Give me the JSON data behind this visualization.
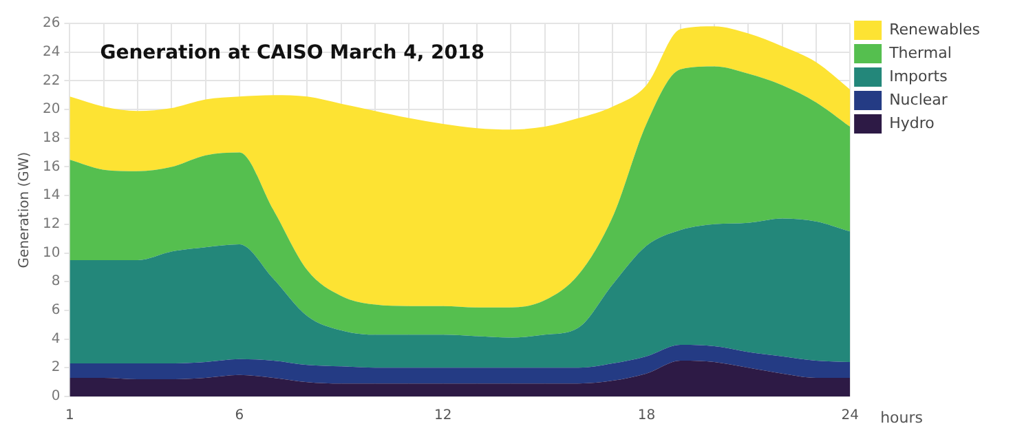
{
  "chart_data": {
    "type": "area",
    "title": "Generation at CAISO March 4, 2018",
    "xlabel": "hours",
    "ylabel": "Generation (GW)",
    "stacked": true,
    "legend": "right",
    "grid": true,
    "x": [
      1,
      2,
      3,
      4,
      5,
      6,
      7,
      8,
      9,
      10,
      11,
      12,
      13,
      14,
      15,
      16,
      17,
      18,
      19,
      20,
      21,
      22,
      23,
      24
    ],
    "xlim": [
      1,
      24
    ],
    "xticks": [
      1,
      {
        "value": 2,
        "label": null
      },
      {
        "value": 3,
        "label": null
      },
      {
        "value": 4,
        "label": null
      },
      {
        "value": 5,
        "label": null
      },
      6,
      {
        "value": 7,
        "label": null
      },
      {
        "value": 8,
        "label": null
      },
      {
        "value": 9,
        "label": null
      },
      {
        "value": 10,
        "label": null
      },
      {
        "value": 11,
        "label": null
      },
      12,
      {
        "value": 13,
        "label": null
      },
      {
        "value": 14,
        "label": null
      },
      {
        "value": 15,
        "label": null
      },
      {
        "value": 16,
        "label": null
      },
      {
        "value": 17,
        "label": null
      },
      18,
      {
        "value": 19,
        "label": null
      },
      {
        "value": 20,
        "label": null
      },
      {
        "value": 21,
        "label": null
      },
      {
        "value": 22,
        "label": null
      },
      {
        "value": 23,
        "label": null
      },
      24
    ],
    "ylim": [
      0,
      26
    ],
    "yticks": [
      0,
      2,
      4,
      6,
      8,
      10,
      12,
      14,
      16,
      18,
      20,
      22,
      24,
      26
    ],
    "series": [
      {
        "name": "Hydro",
        "color": "#2d1a45",
        "values": [
          1.3,
          1.3,
          1.2,
          1.2,
          1.3,
          1.5,
          1.3,
          1.0,
          0.9,
          0.9,
          0.9,
          0.9,
          0.9,
          0.9,
          0.9,
          0.9,
          1.1,
          1.6,
          2.5,
          2.4,
          2.0,
          1.6,
          1.3,
          1.3
        ]
      },
      {
        "name": "Nuclear",
        "color": "#243b84",
        "values": [
          1.0,
          1.0,
          1.1,
          1.1,
          1.1,
          1.1,
          1.2,
          1.2,
          1.2,
          1.1,
          1.1,
          1.1,
          1.1,
          1.1,
          1.1,
          1.1,
          1.2,
          1.2,
          1.1,
          1.1,
          1.1,
          1.2,
          1.2,
          1.1
        ]
      },
      {
        "name": "Imports",
        "color": "#23877a",
        "values": [
          7.2,
          7.2,
          7.2,
          7.8,
          8.0,
          8.0,
          5.7,
          3.4,
          2.5,
          2.3,
          2.3,
          2.3,
          2.2,
          2.1,
          2.3,
          2.8,
          5.5,
          7.7,
          8.0,
          8.5,
          9.0,
          9.6,
          9.7,
          9.1
        ]
      },
      {
        "name": "Thermal",
        "color": "#55bf4f",
        "values": [
          7.0,
          6.3,
          6.2,
          5.9,
          6.4,
          6.4,
          4.8,
          3.2,
          2.4,
          2.1,
          2.0,
          2.0,
          2.0,
          2.1,
          2.4,
          3.7,
          4.7,
          8.5,
          11.2,
          11.0,
          10.4,
          9.3,
          8.3,
          7.3
        ]
      },
      {
        "name": "Renewables",
        "color": "#fde333",
        "values": [
          4.4,
          4.4,
          4.2,
          4.1,
          3.9,
          3.9,
          8.0,
          12.1,
          13.4,
          13.5,
          13.1,
          12.7,
          12.5,
          12.4,
          12.1,
          10.9,
          7.7,
          2.7,
          2.8,
          2.8,
          2.8,
          2.7,
          2.8,
          2.6
        ]
      }
    ]
  }
}
